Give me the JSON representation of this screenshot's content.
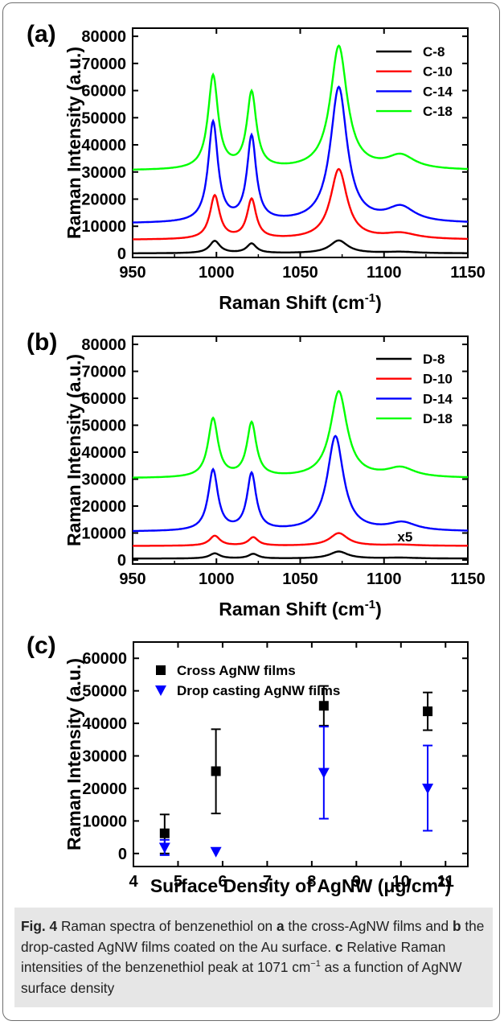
{
  "chart_data": [
    {
      "panel_label": "(a)",
      "type": "line",
      "xlabel": "Raman Shift (cm",
      "xlabel_sup": "-1",
      "xlabel_close": ")",
      "ylabel": "Raman Intensity (a.u.)",
      "xlim": [
        950,
        1150
      ],
      "ylim": [
        -1500,
        83000
      ],
      "xticks": [
        "950",
        "1000",
        "1050",
        "1100",
        "1150"
      ],
      "yticks": [
        "0",
        "10000",
        "20000",
        "30000",
        "40000",
        "50000",
        "60000",
        "70000",
        "80000"
      ],
      "grid": false,
      "legend_position": "top-right",
      "series": [
        {
          "name": "C-8",
          "color": "#000000",
          "baseline": 0,
          "peaks": [
            [
              999,
              4500,
              3.8
            ],
            [
              1021,
              3500,
              3.5
            ],
            [
              1073,
              4700,
              6.5
            ],
            [
              1110,
              500,
              12
            ]
          ]
        },
        {
          "name": "C-10",
          "color": "#ff0000",
          "baseline": 5000,
          "peaks": [
            [
              999,
              16000,
              3.5
            ],
            [
              1021,
              14500,
              3.3
            ],
            [
              1073,
              25800,
              6.0
            ],
            [
              1110,
              2100,
              12
            ]
          ]
        },
        {
          "name": "C-14",
          "color": "#0000ff",
          "baseline": 11000,
          "peaks": [
            [
              998,
              36800,
              3.5
            ],
            [
              1021,
              31200,
              3.3
            ],
            [
              1073,
              49800,
              6.0
            ],
            [
              1110,
              5500,
              10
            ]
          ]
        },
        {
          "name": "C-18",
          "color": "#00ff00",
          "baseline": 30500,
          "peaks": [
            [
              998,
              34500,
              3.6
            ],
            [
              1021,
              28000,
              3.4
            ],
            [
              1073,
              45500,
              6.0
            ],
            [
              1110,
              5000,
              10
            ]
          ]
        }
      ]
    },
    {
      "panel_label": "(b)",
      "type": "line",
      "xlabel": "Raman Shift (cm",
      "xlabel_sup": "-1",
      "xlabel_close": ")",
      "ylabel": "Raman Intensity (a.u.)",
      "xlim": [
        950,
        1150
      ],
      "ylim": [
        -1500,
        83000
      ],
      "xticks": [
        "950",
        "1000",
        "1050",
        "1100",
        "1150"
      ],
      "yticks": [
        "0",
        "10000",
        "20000",
        "30000",
        "40000",
        "50000",
        "60000",
        "70000",
        "80000"
      ],
      "grid": false,
      "legend_position": "top-right",
      "annotation": "x5",
      "annotation_at": [
        1108,
        6900
      ],
      "series": [
        {
          "name": "D-8",
          "color": "#000000",
          "baseline": 500,
          "peaks": [
            [
              999,
              1900,
              3.8
            ],
            [
              1022,
              1700,
              3.5
            ],
            [
              1073,
              2600,
              6.5
            ],
            [
              1110,
              300,
              12
            ]
          ]
        },
        {
          "name": "D-10",
          "color": "#ff0000",
          "baseline": 5200,
          "peaks": [
            [
              999,
              3700,
              3.8
            ],
            [
              1022,
              3100,
              3.5
            ],
            [
              1073,
              4700,
              6.5
            ],
            [
              1110,
              400,
              12
            ]
          ]
        },
        {
          "name": "D-14",
          "color": "#0000ff",
          "baseline": 10500,
          "peaks": [
            [
              998,
              22500,
              3.5
            ],
            [
              1021,
              21000,
              3.3
            ],
            [
              1071,
              35200,
              5.8
            ],
            [
              1111,
              3000,
              10
            ]
          ]
        },
        {
          "name": "D-18",
          "color": "#00ff00",
          "baseline": 30300,
          "peaks": [
            [
              998,
              21800,
              3.6
            ],
            [
              1021,
              20000,
              3.4
            ],
            [
              1073,
              32000,
              6.0
            ],
            [
              1110,
              3500,
              10
            ]
          ]
        }
      ]
    },
    {
      "panel_label": "(c)",
      "type": "scatter",
      "xlabel": "Surface Density of AgNW (",
      "xlabel_unit": "μg/cm",
      "xlabel_sup": "2",
      "xlabel_close": ")",
      "ylabel": "Raman Intensity (a.u.)",
      "xlim": [
        4,
        11.5
      ],
      "ylim": [
        -4000,
        65000
      ],
      "xticks": [
        "4",
        "5",
        "6",
        "7",
        "8",
        "9",
        "10",
        "11"
      ],
      "yticks": [
        "0",
        "10000",
        "20000",
        "30000",
        "40000",
        "50000",
        "60000"
      ],
      "grid": false,
      "legend_position": "top-left",
      "series": [
        {
          "name": "Cross AgNW films",
          "color": "#000000",
          "marker": "square",
          "points": [
            {
              "x": 4.7,
              "y": 6200,
              "lo": 0,
              "hi": 12000
            },
            {
              "x": 5.85,
              "y": 25300,
              "lo": 12300,
              "hi": 38200
            },
            {
              "x": 8.27,
              "y": 45400,
              "lo": 39300,
              "hi": 51500
            },
            {
              "x": 10.6,
              "y": 43700,
              "lo": 37900,
              "hi": 49500
            }
          ]
        },
        {
          "name": "Drop casting AgNW films",
          "color": "#0000ff",
          "marker": "triangle-down",
          "points": [
            {
              "x": 4.7,
              "y": 1800,
              "lo": -500,
              "hi": 4200
            },
            {
              "x": 5.85,
              "y": 500,
              "lo": 500,
              "hi": 500
            },
            {
              "x": 8.27,
              "y": 24800,
              "lo": 10700,
              "hi": 39000
            },
            {
              "x": 10.6,
              "y": 20000,
              "lo": 7000,
              "hi": 33200
            }
          ]
        }
      ]
    }
  ],
  "caption": {
    "fig_label": "Fig. 4",
    "t1": " Raman spectra of benzenethiol on ",
    "a": "a",
    "t2": " the cross-AgNW films and ",
    "b": "b",
    "t3": " the drop-casted AgNW films coated on the Au surface. ",
    "c": "c",
    "t4": " Relative Raman intensities of the benzenethiol peak at 1071 cm",
    "sup": "−1",
    "t5": " as a function of AgNW surface density"
  }
}
